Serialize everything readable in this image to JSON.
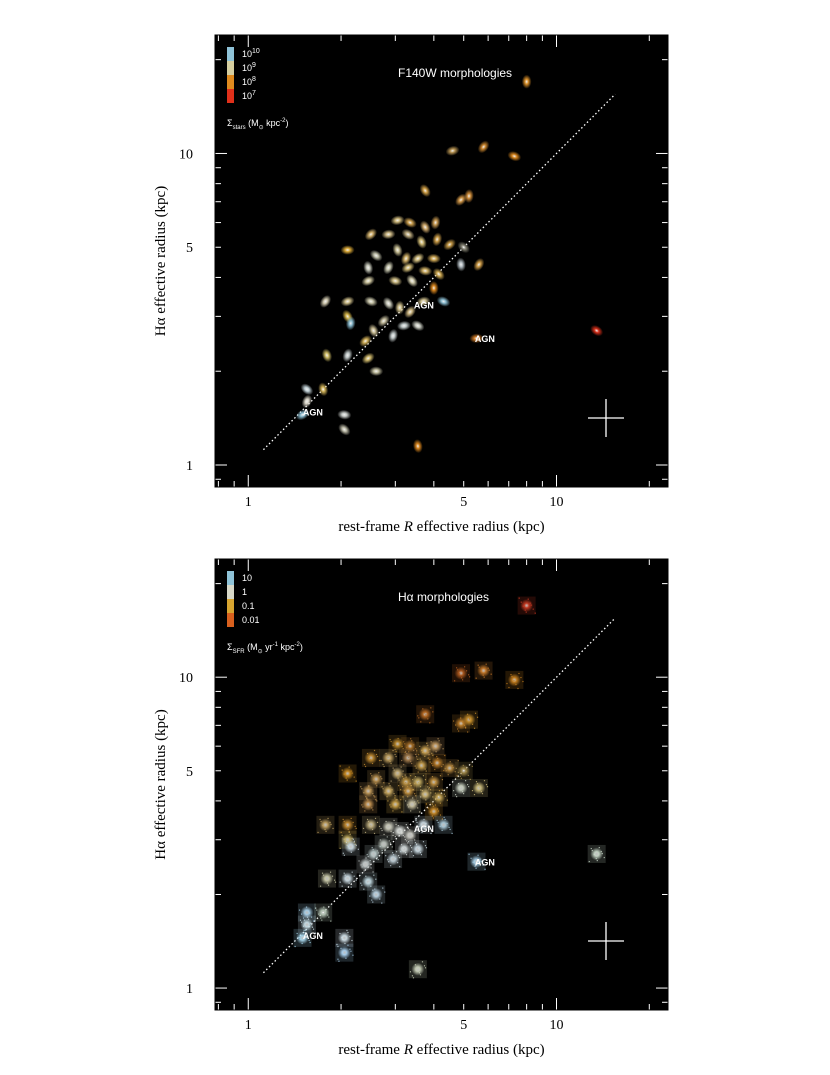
{
  "chart_data": [
    {
      "type": "scatter",
      "title": "F140W morphologies",
      "xlabel_prefix": "rest-frame ",
      "xlabel_italic": "R",
      "xlabel_suffix": " effective radius (kpc)",
      "ylabel": "Hα effective radius (kpc)",
      "xscale": "log",
      "yscale": "log",
      "xlim": [
        0.78,
        23
      ],
      "ylim": [
        0.85,
        24
      ],
      "xticks": [
        {
          "v": 1,
          "label": "1"
        },
        {
          "v": 5,
          "label": "5"
        },
        {
          "v": 10,
          "label": "10"
        }
      ],
      "yticks": [
        {
          "v": 1,
          "label": "1"
        },
        {
          "v": 5,
          "label": "5"
        },
        {
          "v": 10,
          "label": "10"
        }
      ],
      "legend": {
        "placement": "top-left",
        "entries": [
          {
            "base": "10",
            "exp": "10",
            "color": "#8fc3d8"
          },
          {
            "base": "10",
            "exp": "9",
            "color": "#d6cfa0"
          },
          {
            "base": "10",
            "exp": "8",
            "color": "#e08a1e"
          },
          {
            "base": "10",
            "exp": "7",
            "color": "#e0301a"
          }
        ],
        "caption_sigma": "Σ",
        "caption_sub": "stars",
        "caption_rest": " (M",
        "caption_sun": "⊙",
        "caption_tail": " kpc",
        "caption_exp": "-2",
        "caption_close": ")"
      },
      "one_to_one_line": {
        "from": 1.12,
        "to": 15.5
      },
      "error_cross_label": "",
      "agn": [
        {
          "x": 3.55,
          "y": 3.2,
          "text": "AGN"
        },
        {
          "x": 5.6,
          "y": 2.5,
          "text": "AGN"
        },
        {
          "x": 1.55,
          "y": 1.45,
          "text": "AGN"
        }
      ],
      "points": [
        {
          "x": 8.0,
          "y": 17.0,
          "c": "#e3952a"
        },
        {
          "x": 5.8,
          "y": 10.5,
          "c": "#d28a2e"
        },
        {
          "x": 4.6,
          "y": 10.2,
          "c": "#c09a55"
        },
        {
          "x": 7.3,
          "y": 9.8,
          "c": "#e08a1e"
        },
        {
          "x": 3.75,
          "y": 7.6,
          "c": "#d8a548"
        },
        {
          "x": 5.2,
          "y": 7.3,
          "c": "#d7923c"
        },
        {
          "x": 4.9,
          "y": 7.1,
          "c": "#d69a48"
        },
        {
          "x": 3.05,
          "y": 6.1,
          "c": "#d6c080"
        },
        {
          "x": 3.35,
          "y": 6.0,
          "c": "#d3a550"
        },
        {
          "x": 3.75,
          "y": 5.8,
          "c": "#d8b070"
        },
        {
          "x": 4.05,
          "y": 6.0,
          "c": "#d0a055"
        },
        {
          "x": 2.5,
          "y": 5.5,
          "c": "#d7b56e"
        },
        {
          "x": 2.85,
          "y": 5.5,
          "c": "#d5c08a"
        },
        {
          "x": 3.3,
          "y": 5.5,
          "c": "#c4b284"
        },
        {
          "x": 3.65,
          "y": 5.2,
          "c": "#d8c27a"
        },
        {
          "x": 4.1,
          "y": 5.3,
          "c": "#d3a34a"
        },
        {
          "x": 4.5,
          "y": 5.1,
          "c": "#c79a45"
        },
        {
          "x": 2.1,
          "y": 4.9,
          "c": "#e6b23a"
        },
        {
          "x": 2.6,
          "y": 4.7,
          "c": "#c8c8b0"
        },
        {
          "x": 3.05,
          "y": 4.9,
          "c": "#d0c79a"
        },
        {
          "x": 3.25,
          "y": 4.6,
          "c": "#d7b66a"
        },
        {
          "x": 3.55,
          "y": 4.6,
          "c": "#d9c585"
        },
        {
          "x": 4.0,
          "y": 4.6,
          "c": "#d8b05a"
        },
        {
          "x": 5.0,
          "y": 5.0,
          "c": "#8a8878"
        },
        {
          "x": 2.45,
          "y": 4.3,
          "c": "#cfd1c2"
        },
        {
          "x": 2.85,
          "y": 4.3,
          "c": "#d0d0b8"
        },
        {
          "x": 3.3,
          "y": 4.3,
          "c": "#d6c07a"
        },
        {
          "x": 3.75,
          "y": 4.2,
          "c": "#d8b86a"
        },
        {
          "x": 4.15,
          "y": 4.1,
          "c": "#d7b055"
        },
        {
          "x": 4.9,
          "y": 4.4,
          "c": "#b8c2c8"
        },
        {
          "x": 5.6,
          "y": 4.4,
          "c": "#d6a24a"
        },
        {
          "x": 2.45,
          "y": 3.9,
          "c": "#d8d0a8"
        },
        {
          "x": 3.0,
          "y": 3.9,
          "c": "#d6c48a"
        },
        {
          "x": 3.4,
          "y": 3.9,
          "c": "#d8d3b2"
        },
        {
          "x": 4.0,
          "y": 3.7,
          "c": "#e08a1e"
        },
        {
          "x": 1.78,
          "y": 3.35,
          "c": "#d8d0b5"
        },
        {
          "x": 2.1,
          "y": 3.35,
          "c": "#d6c690"
        },
        {
          "x": 2.5,
          "y": 3.35,
          "c": "#d0cdb0"
        },
        {
          "x": 2.85,
          "y": 3.3,
          "c": "#cfd0c0"
        },
        {
          "x": 3.1,
          "y": 3.2,
          "c": "#d6c690"
        },
        {
          "x": 3.35,
          "y": 3.1,
          "c": "#d7c088"
        },
        {
          "x": 3.7,
          "y": 3.35,
          "c": "#d8c995"
        },
        {
          "x": 4.3,
          "y": 3.35,
          "c": "#8fc3d8"
        },
        {
          "x": 2.1,
          "y": 3.0,
          "c": "#d9b848"
        },
        {
          "x": 2.15,
          "y": 2.85,
          "c": "#8fc3d8"
        },
        {
          "x": 2.75,
          "y": 2.9,
          "c": "#c8c0a0"
        },
        {
          "x": 3.2,
          "y": 2.8,
          "c": "#c8d2d2"
        },
        {
          "x": 3.55,
          "y": 2.8,
          "c": "#d0d3c8"
        },
        {
          "x": 2.55,
          "y": 2.7,
          "c": "#d2c59a"
        },
        {
          "x": 2.95,
          "y": 2.6,
          "c": "#c8d0d0"
        },
        {
          "x": 2.4,
          "y": 2.5,
          "c": "#d7b45a"
        },
        {
          "x": 5.5,
          "y": 2.55,
          "c": "#d07a24"
        },
        {
          "x": 13.5,
          "y": 2.7,
          "c": "#e0301a"
        },
        {
          "x": 1.8,
          "y": 2.25,
          "c": "#d8c56a"
        },
        {
          "x": 2.1,
          "y": 2.25,
          "c": "#c8d0d0"
        },
        {
          "x": 2.45,
          "y": 2.2,
          "c": "#d7c070"
        },
        {
          "x": 2.6,
          "y": 2.0,
          "c": "#ccc8a8"
        },
        {
          "x": 1.55,
          "y": 1.75,
          "c": "#c8d8de"
        },
        {
          "x": 1.75,
          "y": 1.75,
          "c": "#d8b85a"
        },
        {
          "x": 1.55,
          "y": 1.6,
          "c": "#e3ded0"
        },
        {
          "x": 1.5,
          "y": 1.45,
          "c": "#8fc3d8"
        },
        {
          "x": 2.05,
          "y": 1.45,
          "c": "#cfd3d0"
        },
        {
          "x": 2.05,
          "y": 1.3,
          "c": "#c6c4b0"
        },
        {
          "x": 3.55,
          "y": 1.15,
          "c": "#e08a1e"
        }
      ]
    },
    {
      "type": "scatter",
      "title": "Hα morphologies",
      "xlabel_prefix": "rest-frame ",
      "xlabel_italic": "R",
      "xlabel_suffix": " effective radius (kpc)",
      "ylabel": "Hα effective radius (kpc)",
      "xscale": "log",
      "yscale": "log",
      "xlim": [
        0.78,
        23
      ],
      "ylim": [
        0.85,
        24
      ],
      "xticks": [
        {
          "v": 1,
          "label": "1"
        },
        {
          "v": 5,
          "label": "5"
        },
        {
          "v": 10,
          "label": "10"
        }
      ],
      "yticks": [
        {
          "v": 1,
          "label": "1"
        },
        {
          "v": 5,
          "label": "5"
        },
        {
          "v": 10,
          "label": "10"
        }
      ],
      "legend": {
        "placement": "top-left",
        "entries": [
          {
            "base": "10",
            "exp": "",
            "color": "#8fc3d8"
          },
          {
            "base": "1",
            "exp": "",
            "color": "#d8d8c8"
          },
          {
            "base": "0.1",
            "exp": "",
            "color": "#d8a530"
          },
          {
            "base": "0.01",
            "exp": "",
            "color": "#d8601e"
          }
        ],
        "caption_sigma": "Σ",
        "caption_sub": "SFR",
        "caption_rest": " (M",
        "caption_sun": "⊙",
        "caption_tail": " yr",
        "caption_exp": "-1",
        "caption_tail2": " kpc",
        "caption_exp2": "-2",
        "caption_close": ")"
      },
      "one_to_one_line": {
        "from": 1.12,
        "to": 15.5
      },
      "agn": [
        {
          "x": 3.55,
          "y": 3.2,
          "text": "AGN"
        },
        {
          "x": 5.6,
          "y": 2.5,
          "text": "AGN"
        },
        {
          "x": 1.55,
          "y": 1.45,
          "text": "AGN"
        }
      ],
      "points": [
        {
          "x": 8.0,
          "y": 17.0,
          "c": "#c83a22"
        },
        {
          "x": 5.8,
          "y": 10.5,
          "c": "#c87a2a"
        },
        {
          "x": 4.9,
          "y": 10.3,
          "c": "#b05a1e"
        },
        {
          "x": 7.3,
          "y": 9.8,
          "c": "#c8801e"
        },
        {
          "x": 3.75,
          "y": 7.6,
          "c": "#b86a22"
        },
        {
          "x": 5.2,
          "y": 7.3,
          "c": "#c8902a"
        },
        {
          "x": 4.9,
          "y": 7.1,
          "c": "#b87a28"
        },
        {
          "x": 3.05,
          "y": 6.1,
          "c": "#b8862a"
        },
        {
          "x": 3.35,
          "y": 6.0,
          "c": "#a87028"
        },
        {
          "x": 3.75,
          "y": 5.8,
          "c": "#c8a050"
        },
        {
          "x": 4.05,
          "y": 6.0,
          "c": "#c09860"
        },
        {
          "x": 2.5,
          "y": 5.5,
          "c": "#c08a30"
        },
        {
          "x": 2.85,
          "y": 5.5,
          "c": "#c0a060"
        },
        {
          "x": 3.3,
          "y": 5.5,
          "c": "#a88050"
        },
        {
          "x": 3.65,
          "y": 5.2,
          "c": "#c09848"
        },
        {
          "x": 4.1,
          "y": 5.3,
          "c": "#b87a28"
        },
        {
          "x": 4.5,
          "y": 5.1,
          "c": "#b88a40"
        },
        {
          "x": 2.1,
          "y": 4.9,
          "c": "#c88a22"
        },
        {
          "x": 2.6,
          "y": 4.7,
          "c": "#b89050"
        },
        {
          "x": 3.05,
          "y": 4.9,
          "c": "#c0a870"
        },
        {
          "x": 3.25,
          "y": 4.6,
          "c": "#b89040"
        },
        {
          "x": 3.55,
          "y": 4.6,
          "c": "#c0a860"
        },
        {
          "x": 4.0,
          "y": 4.6,
          "c": "#c09040"
        },
        {
          "x": 5.0,
          "y": 5.0,
          "c": "#a08848"
        },
        {
          "x": 2.45,
          "y": 4.3,
          "c": "#c09858"
        },
        {
          "x": 2.85,
          "y": 4.3,
          "c": "#c8a860"
        },
        {
          "x": 3.3,
          "y": 4.3,
          "c": "#c09040"
        },
        {
          "x": 3.75,
          "y": 4.2,
          "c": "#c8b070"
        },
        {
          "x": 4.15,
          "y": 4.1,
          "c": "#c0a050"
        },
        {
          "x": 4.9,
          "y": 4.4,
          "c": "#c8d0c0"
        },
        {
          "x": 5.6,
          "y": 4.4,
          "c": "#c8b878"
        },
        {
          "x": 2.45,
          "y": 3.9,
          "c": "#c09050"
        },
        {
          "x": 3.0,
          "y": 3.9,
          "c": "#c8a048"
        },
        {
          "x": 3.4,
          "y": 3.9,
          "c": "#c8c0a0"
        },
        {
          "x": 4.0,
          "y": 3.7,
          "c": "#c88a28"
        },
        {
          "x": 1.78,
          "y": 3.35,
          "c": "#c0a060"
        },
        {
          "x": 2.1,
          "y": 3.35,
          "c": "#c08830"
        },
        {
          "x": 2.5,
          "y": 3.35,
          "c": "#c0b080"
        },
        {
          "x": 2.85,
          "y": 3.3,
          "c": "#c8c8b8"
        },
        {
          "x": 3.1,
          "y": 3.2,
          "c": "#d8dcd8"
        },
        {
          "x": 3.35,
          "y": 3.1,
          "c": "#c8c8c0"
        },
        {
          "x": 3.7,
          "y": 3.35,
          "c": "#c8d8e0"
        },
        {
          "x": 4.3,
          "y": 3.35,
          "c": "#a8c8d8"
        },
        {
          "x": 2.1,
          "y": 3.0,
          "c": "#c8b060"
        },
        {
          "x": 2.15,
          "y": 2.85,
          "c": "#c8d8e0"
        },
        {
          "x": 2.75,
          "y": 2.9,
          "c": "#b8c0b8"
        },
        {
          "x": 3.2,
          "y": 2.8,
          "c": "#d0d8d8"
        },
        {
          "x": 3.55,
          "y": 2.8,
          "c": "#c8d8e0"
        },
        {
          "x": 2.55,
          "y": 2.7,
          "c": "#b8c8c8"
        },
        {
          "x": 2.95,
          "y": 2.6,
          "c": "#c0d0d8"
        },
        {
          "x": 2.4,
          "y": 2.5,
          "c": "#c0c8c8"
        },
        {
          "x": 5.5,
          "y": 2.55,
          "c": "#a8d0e8"
        },
        {
          "x": 13.5,
          "y": 2.7,
          "c": "#c8d8c8"
        },
        {
          "x": 1.8,
          "y": 2.25,
          "c": "#c8c8a8"
        },
        {
          "x": 2.1,
          "y": 2.25,
          "c": "#c8d8e0"
        },
        {
          "x": 2.45,
          "y": 2.2,
          "c": "#c0d8e0"
        },
        {
          "x": 2.6,
          "y": 2.0,
          "c": "#b8d0e0"
        },
        {
          "x": 1.55,
          "y": 1.75,
          "c": "#a8d0e8"
        },
        {
          "x": 1.75,
          "y": 1.75,
          "c": "#b8c8b8"
        },
        {
          "x": 1.55,
          "y": 1.6,
          "c": "#c8e0e8"
        },
        {
          "x": 1.5,
          "y": 1.45,
          "c": "#a8d8ee"
        },
        {
          "x": 2.05,
          "y": 1.45,
          "c": "#d0e0e8"
        },
        {
          "x": 2.05,
          "y": 1.3,
          "c": "#a8d0ee"
        },
        {
          "x": 3.55,
          "y": 1.15,
          "c": "#c8d0b8"
        }
      ]
    }
  ]
}
